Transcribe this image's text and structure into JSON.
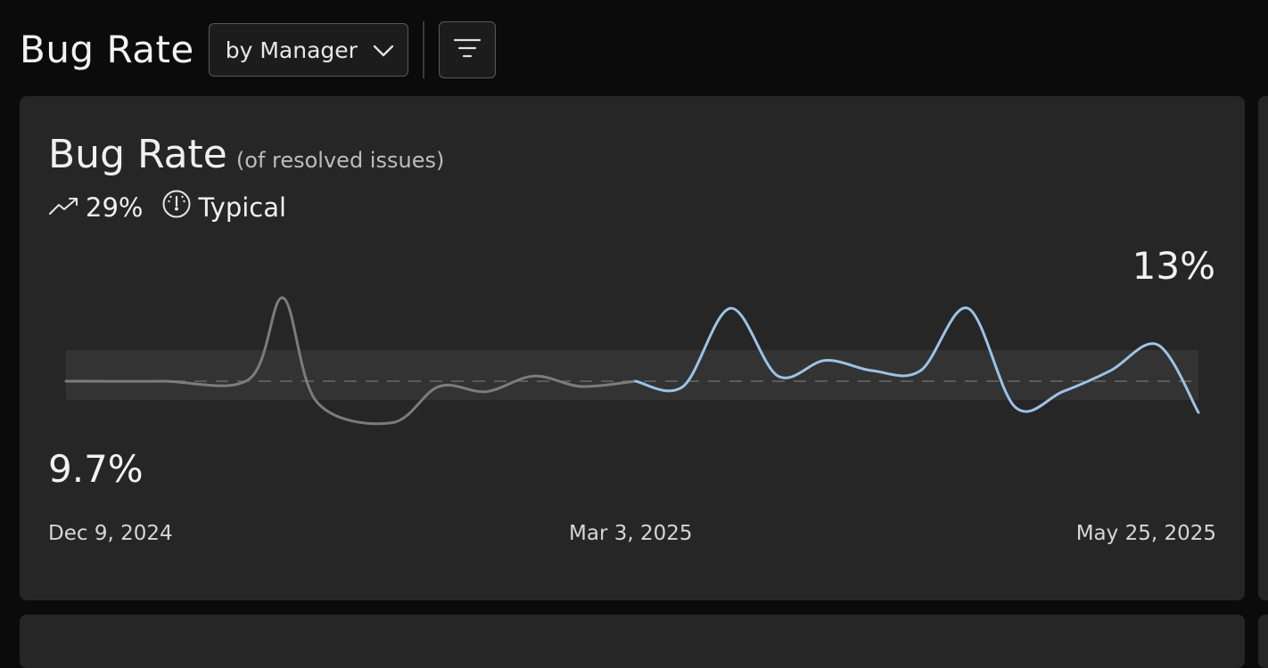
{
  "header": {
    "title": "Bug Rate",
    "group_by": "by Manager",
    "icons": {
      "dropdown": "chevron-down-icon",
      "filter": "filter-icon"
    }
  },
  "card": {
    "title": "Bug Rate",
    "subtitle": "(of resolved issues)",
    "change": "29%",
    "change_icon": "trend-up-icon",
    "status": "Typical",
    "status_icon": "gauge-icon",
    "y_max_label": "13%",
    "y_min_label": "9.7%",
    "x_labels": [
      "Dec 9, 2024",
      "Mar 3, 2025",
      "May 25, 2025"
    ]
  },
  "chart_data": {
    "type": "line",
    "x_start": "Dec 9, 2024",
    "x_end": "May 25, 2025",
    "ylim": [
      9.7,
      13
    ],
    "series": [
      {
        "color": "#7c7c7c",
        "x": [
          "2024-12-09",
          "2024-12-23",
          "2025-01-05",
          "2025-01-10",
          "2025-01-15",
          "2025-01-26",
          "2025-02-02",
          "2025-02-09",
          "2025-02-16",
          "2025-02-23",
          "2025-03-03"
        ],
        "values": [
          11.4,
          11.4,
          11.42,
          12.2,
          11.2,
          11.0,
          11.35,
          11.3,
          11.45,
          11.35,
          11.4
        ]
      },
      {
        "color": "#9cc3e6",
        "x": [
          "2025-03-03",
          "2025-03-10",
          "2025-03-17",
          "2025-03-24",
          "2025-03-31",
          "2025-04-07",
          "2025-04-14",
          "2025-04-21",
          "2025-04-28",
          "2025-05-05",
          "2025-05-12",
          "2025-05-19",
          "2025-05-25"
        ],
        "values": [
          11.4,
          11.35,
          12.1,
          11.45,
          11.6,
          11.5,
          11.5,
          12.1,
          11.15,
          11.3,
          11.5,
          11.75,
          11.1
        ]
      }
    ],
    "band_color": "#333333",
    "baseline_color": "#6b6b6b",
    "grid": false,
    "legend": false
  }
}
